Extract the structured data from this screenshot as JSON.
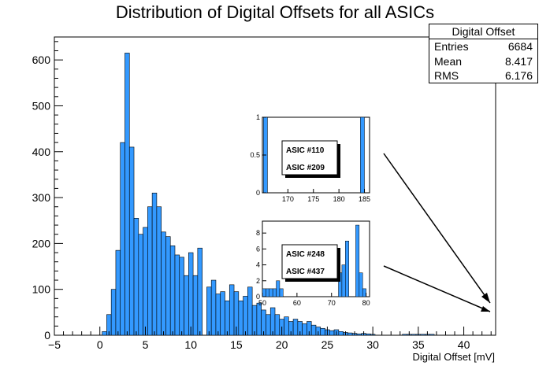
{
  "chart_data": {
    "type": "bar",
    "title": "Distribution of Digital Offsets for all ASICs",
    "xlabel": "Digital Offset [mV]",
    "ylabel": "",
    "xlim": [
      -5,
      43.5
    ],
    "ylim": [
      0,
      650
    ],
    "xticks": [
      "−5",
      "0",
      "5",
      "10",
      "15",
      "20",
      "25",
      "30",
      "35",
      "40"
    ],
    "yticks": [
      "0",
      "100",
      "200",
      "300",
      "400",
      "500",
      "600"
    ],
    "bin_width": 0.5,
    "bins": [
      {
        "x": 0.5,
        "y": 8
      },
      {
        "x": 1.0,
        "y": 45
      },
      {
        "x": 1.5,
        "y": 100
      },
      {
        "x": 2.0,
        "y": 185
      },
      {
        "x": 2.5,
        "y": 420
      },
      {
        "x": 3.0,
        "y": 615
      },
      {
        "x": 3.5,
        "y": 410
      },
      {
        "x": 4.0,
        "y": 255
      },
      {
        "x": 4.5,
        "y": 220
      },
      {
        "x": 5.0,
        "y": 235
      },
      {
        "x": 5.5,
        "y": 280
      },
      {
        "x": 6.0,
        "y": 310
      },
      {
        "x": 6.5,
        "y": 280
      },
      {
        "x": 7.0,
        "y": 225
      },
      {
        "x": 7.5,
        "y": 215
      },
      {
        "x": 8.0,
        "y": 195
      },
      {
        "x": 8.5,
        "y": 175
      },
      {
        "x": 9.0,
        "y": 170
      },
      {
        "x": 9.5,
        "y": 130
      },
      {
        "x": 10.0,
        "y": 180
      },
      {
        "x": 10.5,
        "y": 130
      },
      {
        "x": 11.0,
        "y": 190
      },
      {
        "x": 11.5,
        "y": 0
      },
      {
        "x": 12.0,
        "y": 105
      },
      {
        "x": 12.5,
        "y": 120
      },
      {
        "x": 13.0,
        "y": 90
      },
      {
        "x": 13.5,
        "y": 95
      },
      {
        "x": 14.0,
        "y": 75
      },
      {
        "x": 14.5,
        "y": 110
      },
      {
        "x": 15.0,
        "y": 95
      },
      {
        "x": 15.5,
        "y": 75
      },
      {
        "x": 16.0,
        "y": 85
      },
      {
        "x": 16.5,
        "y": 105
      },
      {
        "x": 17.0,
        "y": 65
      },
      {
        "x": 17.5,
        "y": 70
      },
      {
        "x": 18.0,
        "y": 55
      },
      {
        "x": 18.5,
        "y": 45
      },
      {
        "x": 19.0,
        "y": 60
      },
      {
        "x": 19.5,
        "y": 45
      },
      {
        "x": 20.0,
        "y": 35
      },
      {
        "x": 20.5,
        "y": 40
      },
      {
        "x": 21.0,
        "y": 30
      },
      {
        "x": 21.5,
        "y": 35
      },
      {
        "x": 22.0,
        "y": 30
      },
      {
        "x": 22.5,
        "y": 25
      },
      {
        "x": 23.0,
        "y": 30
      },
      {
        "x": 23.5,
        "y": 22
      },
      {
        "x": 24.0,
        "y": 18
      },
      {
        "x": 24.5,
        "y": 15
      },
      {
        "x": 25.0,
        "y": 12
      },
      {
        "x": 25.5,
        "y": 10
      },
      {
        "x": 26.0,
        "y": 12
      },
      {
        "x": 26.5,
        "y": 8
      },
      {
        "x": 27.0,
        "y": 6
      },
      {
        "x": 27.5,
        "y": 5
      },
      {
        "x": 28.0,
        "y": 4
      },
      {
        "x": 28.5,
        "y": 3
      },
      {
        "x": 29.0,
        "y": 4
      },
      {
        "x": 29.5,
        "y": 3
      },
      {
        "x": 30.0,
        "y": 2
      },
      {
        "x": 33.5,
        "y": 2
      },
      {
        "x": 34.0,
        "y": 2
      },
      {
        "x": 34.5,
        "y": 2
      },
      {
        "x": 35.0,
        "y": 2
      },
      {
        "x": 35.5,
        "y": 2
      },
      {
        "x": 36.0,
        "y": 2
      },
      {
        "x": 36.5,
        "y": 2
      }
    ],
    "color": "#3399ff",
    "grid": false,
    "stats_box": {
      "title": "Digital Offset",
      "rows": [
        {
          "label": "Entries",
          "value": "6684"
        },
        {
          "label": "Mean",
          "value": "8.417"
        },
        {
          "label": "RMS",
          "value": "6.176"
        }
      ]
    },
    "insets": [
      {
        "xticks": [
          "170",
          "175",
          "180",
          "185"
        ],
        "yticks": [
          "0",
          "0.5",
          "1"
        ],
        "xlim": [
          165,
          186
        ],
        "ylim": [
          0,
          1
        ],
        "bin_width": 0.8,
        "bins": [
          {
            "x": 165.6,
            "y": 1
          },
          {
            "x": 184.6,
            "y": 1
          }
        ],
        "labels": [
          "ASIC #110",
          "ASIC #209"
        ]
      },
      {
        "xticks": [
          "50",
          "60",
          "70",
          "80"
        ],
        "yticks": [
          "0",
          "2",
          "4",
          "6",
          "8"
        ],
        "xlim": [
          50,
          81
        ],
        "ylim": [
          0,
          9.5
        ],
        "bin_width": 1,
        "bins": [
          {
            "x": 50.5,
            "y": 1
          },
          {
            "x": 51.5,
            "y": 1
          },
          {
            "x": 52.5,
            "y": 1
          },
          {
            "x": 53.5,
            "y": 1
          },
          {
            "x": 54.5,
            "y": 2
          },
          {
            "x": 55.5,
            "y": 1
          },
          {
            "x": 72.5,
            "y": 3
          },
          {
            "x": 73.5,
            "y": 4
          },
          {
            "x": 74.5,
            "y": 7
          },
          {
            "x": 77.5,
            "y": 9
          },
          {
            "x": 78.5,
            "y": 3
          },
          {
            "x": 79.5,
            "y": 1
          }
        ],
        "labels": [
          "ASIC #248",
          "ASIC #437"
        ]
      }
    ]
  }
}
